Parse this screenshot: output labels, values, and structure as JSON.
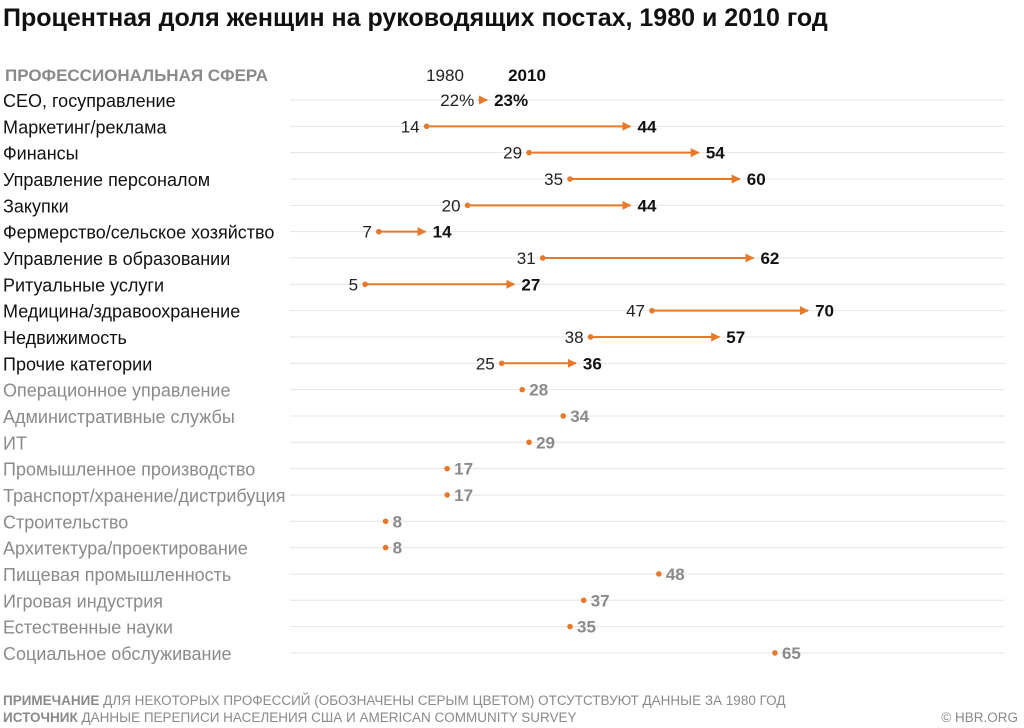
{
  "chart_data": {
    "type": "dumbbell",
    "title": "Процентная доля женщин на руководящих постах, 1980 и 2010 год",
    "category_header": "ПРОФЕССИОНАЛЬНАЯ СФЕРА",
    "series": [
      {
        "name": "1980"
      },
      {
        "name": "2010"
      }
    ],
    "xlim": [
      0,
      100
    ],
    "grid": true,
    "colors": {
      "accent": "#e8782a",
      "dark_text": "#111111",
      "muted_text": "#8a8a8a",
      "grid": "#e4e4e4"
    },
    "rows": [
      {
        "category": "CEO, госуправление",
        "v1980": 22,
        "v2010": 23,
        "label1980": "22%",
        "label2010": "23%",
        "has1980": true
      },
      {
        "category": "Маркетинг/реклама",
        "v1980": 14,
        "v2010": 44,
        "label1980": "14",
        "label2010": "44",
        "has1980": true
      },
      {
        "category": "Финансы",
        "v1980": 29,
        "v2010": 54,
        "label1980": "29",
        "label2010": "54",
        "has1980": true
      },
      {
        "category": "Управление персоналом",
        "v1980": 35,
        "v2010": 60,
        "label1980": "35",
        "label2010": "60",
        "has1980": true
      },
      {
        "category": "Закупки",
        "v1980": 20,
        "v2010": 44,
        "label1980": "20",
        "label2010": "44",
        "has1980": true
      },
      {
        "category": "Фермерство/сельское хозяйство",
        "v1980": 7,
        "v2010": 14,
        "label1980": "7",
        "label2010": "14",
        "has1980": true
      },
      {
        "category": "Управление в образовании",
        "v1980": 31,
        "v2010": 62,
        "label1980": "31",
        "label2010": "62",
        "has1980": true
      },
      {
        "category": "Ритуальные услуги",
        "v1980": 5,
        "v2010": 27,
        "label1980": "5",
        "label2010": "27",
        "has1980": true
      },
      {
        "category": "Медицина/здравоохранение",
        "v1980": 47,
        "v2010": 70,
        "label1980": "47",
        "label2010": "70",
        "has1980": true
      },
      {
        "category": "Недвижимость",
        "v1980": 38,
        "v2010": 57,
        "label1980": "38",
        "label2010": "57",
        "has1980": true
      },
      {
        "category": "Прочие категории",
        "v1980": 25,
        "v2010": 36,
        "label1980": "25",
        "label2010": "36",
        "has1980": true
      },
      {
        "category": "Операционное управление",
        "v2010": 28,
        "label2010": "28",
        "has1980": false
      },
      {
        "category": "Административные службы",
        "v2010": 34,
        "label2010": "34",
        "has1980": false
      },
      {
        "category": "ИТ",
        "v2010": 29,
        "label2010": "29",
        "has1980": false
      },
      {
        "category": "Промышленное производство",
        "v2010": 17,
        "label2010": "17",
        "has1980": false
      },
      {
        "category": "Транспорт/хранение/дистрибуция",
        "v2010": 17,
        "label2010": "17",
        "has1980": false
      },
      {
        "category": "Строительство",
        "v2010": 8,
        "label2010": "8",
        "has1980": false
      },
      {
        "category": "Архитектура/проектирование",
        "v2010": 8,
        "label2010": "8",
        "has1980": false
      },
      {
        "category": "Пищевая промышленность",
        "v2010": 48,
        "label2010": "48",
        "has1980": false
      },
      {
        "category": "Игровая индустрия",
        "v2010": 37,
        "label2010": "37",
        "has1980": false
      },
      {
        "category": "Естественные науки",
        "v2010": 35,
        "label2010": "35",
        "has1980": false
      },
      {
        "category": "Социальное обслуживание",
        "v2010": 65,
        "label2010": "65",
        "has1980": false
      }
    ]
  },
  "footer": {
    "note_label": "ПРИМЕЧАНИЕ",
    "note_text": " ДЛЯ НЕКОТОРЫХ ПРОФЕССИЙ (ОБОЗНАЧЕНЫ СЕРЫМ ЦВЕТОМ) ОТСУТСТВУЮТ ДАННЫЕ ЗА 1980 ГОД",
    "source_label": "ИСТОЧНИК",
    "source_text": " ДАННЫЕ ПЕРЕПИСИ НАСЕЛЕНИЯ США И AMERICAN COMMUNITY SURVEY",
    "copyright": "© HBR.ORG"
  }
}
